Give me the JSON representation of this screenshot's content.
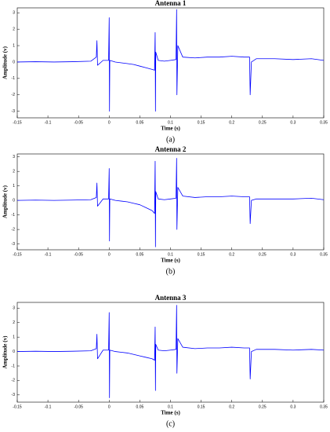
{
  "chart_data": [
    {
      "type": "line",
      "title": "Antenna 1",
      "xlabel": "Time (s)",
      "ylabel": "Amplitude (v)",
      "caption": "(a)",
      "color": "#0000ff",
      "x": [
        -0.15,
        -0.12,
        -0.09,
        -0.06,
        -0.03,
        -0.021,
        -0.02,
        -0.019,
        -0.01,
        -0.001,
        0,
        0.0005,
        0.001,
        0.01,
        0.02,
        0.03,
        0.04,
        0.05,
        0.06,
        0.07,
        0.074,
        0.075,
        0.0755,
        0.076,
        0.08,
        0.09,
        0.1,
        0.109,
        0.11,
        0.1105,
        0.112,
        0.12,
        0.14,
        0.16,
        0.18,
        0.2,
        0.22,
        0.229,
        0.23,
        0.232,
        0.24,
        0.27,
        0.3,
        0.33,
        0.35
      ],
      "values": [
        0,
        0.02,
        0,
        0.02,
        0.05,
        0.3,
        1.3,
        -0.2,
        0.1,
        0.1,
        2.7,
        -3,
        0.1,
        0,
        -0.05,
        -0.1,
        -0.15,
        -0.25,
        -0.35,
        -0.45,
        -0.5,
        1.8,
        -3,
        0.6,
        0.1,
        0.05,
        0.1,
        0.15,
        3.2,
        -2,
        1,
        0.3,
        0.25,
        0.3,
        0.3,
        0.35,
        0.3,
        0.3,
        -2,
        0,
        0.2,
        0.2,
        0.15,
        0.2,
        0.1
      ],
      "xlim": [
        -0.15,
        0.35
      ],
      "ylim": [
        -3.4,
        3.3
      ],
      "xticks": [
        -0.15,
        -0.1,
        -0.05,
        0,
        0.05,
        0.1,
        0.15,
        0.2,
        0.25,
        0.3,
        0.35
      ],
      "yticks": [
        -3,
        -2,
        -1,
        0,
        1,
        2,
        3
      ]
    },
    {
      "type": "line",
      "title": "Antenna 2",
      "xlabel": "Time (s)",
      "ylabel": "Amplitude (v)",
      "caption": "(b)",
      "color": "#0000ff",
      "x": [
        -0.15,
        -0.12,
        -0.09,
        -0.06,
        -0.03,
        -0.021,
        -0.02,
        -0.019,
        -0.01,
        -0.001,
        0,
        0.0005,
        0.001,
        0.01,
        0.02,
        0.03,
        0.04,
        0.05,
        0.06,
        0.07,
        0.074,
        0.075,
        0.0755,
        0.076,
        0.08,
        0.09,
        0.1,
        0.109,
        0.11,
        0.1105,
        0.112,
        0.12,
        0.14,
        0.16,
        0.18,
        0.2,
        0.22,
        0.229,
        0.23,
        0.232,
        0.24,
        0.27,
        0.3,
        0.33,
        0.35
      ],
      "values": [
        0,
        0.02,
        0,
        0.02,
        0.05,
        0.2,
        1.2,
        -0.4,
        0.1,
        0.1,
        2.2,
        -2.8,
        0.1,
        0,
        -0.05,
        -0.1,
        -0.2,
        -0.3,
        -0.5,
        -0.7,
        -0.9,
        2.7,
        -3.2,
        0.6,
        0.1,
        0.05,
        0.1,
        0.15,
        2.9,
        -2,
        0.9,
        0.3,
        0.2,
        0.25,
        0.25,
        0.3,
        0.25,
        0.25,
        -1.6,
        0,
        0.1,
        0.1,
        0.1,
        0.15,
        0.05
      ],
      "xlim": [
        -0.15,
        0.35
      ],
      "ylim": [
        -3.4,
        3.2
      ],
      "xticks": [
        -0.15,
        -0.1,
        -0.05,
        0,
        0.05,
        0.1,
        0.15,
        0.2,
        0.25,
        0.3,
        0.35
      ],
      "yticks": [
        -3,
        -2,
        -1,
        0,
        1,
        2,
        3
      ]
    },
    {
      "type": "line",
      "title": "Antenna 3",
      "xlabel": "Time (s)",
      "ylabel": "Amplitude (v)",
      "caption": "(c)",
      "color": "#0000ff",
      "x": [
        -0.15,
        -0.12,
        -0.09,
        -0.06,
        -0.03,
        -0.021,
        -0.02,
        -0.019,
        -0.01,
        -0.001,
        0,
        0.0005,
        0.001,
        0.01,
        0.02,
        0.03,
        0.04,
        0.05,
        0.06,
        0.07,
        0.074,
        0.075,
        0.0755,
        0.076,
        0.08,
        0.09,
        0.1,
        0.109,
        0.11,
        0.1105,
        0.112,
        0.12,
        0.14,
        0.16,
        0.18,
        0.2,
        0.22,
        0.229,
        0.23,
        0.232,
        0.24,
        0.27,
        0.3,
        0.33,
        0.35
      ],
      "values": [
        0,
        0.02,
        0,
        0.02,
        0.05,
        0.2,
        1.2,
        -0.5,
        0.1,
        0.1,
        2.7,
        -3.2,
        0.1,
        0,
        -0.05,
        -0.1,
        -0.2,
        -0.3,
        -0.4,
        -0.5,
        -0.6,
        1.7,
        -2.7,
        0.5,
        0.1,
        0.05,
        0.1,
        0.15,
        3.2,
        -1.5,
        0.9,
        0.3,
        0.2,
        0.25,
        0.25,
        0.3,
        0.25,
        0.25,
        -1.9,
        0,
        0.15,
        0.15,
        0.1,
        0.15,
        0.1
      ],
      "xlim": [
        -0.15,
        0.35
      ],
      "ylim": [
        -3.5,
        3.4
      ],
      "xticks": [
        -0.15,
        -0.1,
        -0.05,
        0,
        0.05,
        0.1,
        0.15,
        0.2,
        0.25,
        0.3,
        0.35
      ],
      "yticks": [
        -3,
        -2,
        -1,
        0,
        1,
        2,
        3
      ]
    }
  ]
}
